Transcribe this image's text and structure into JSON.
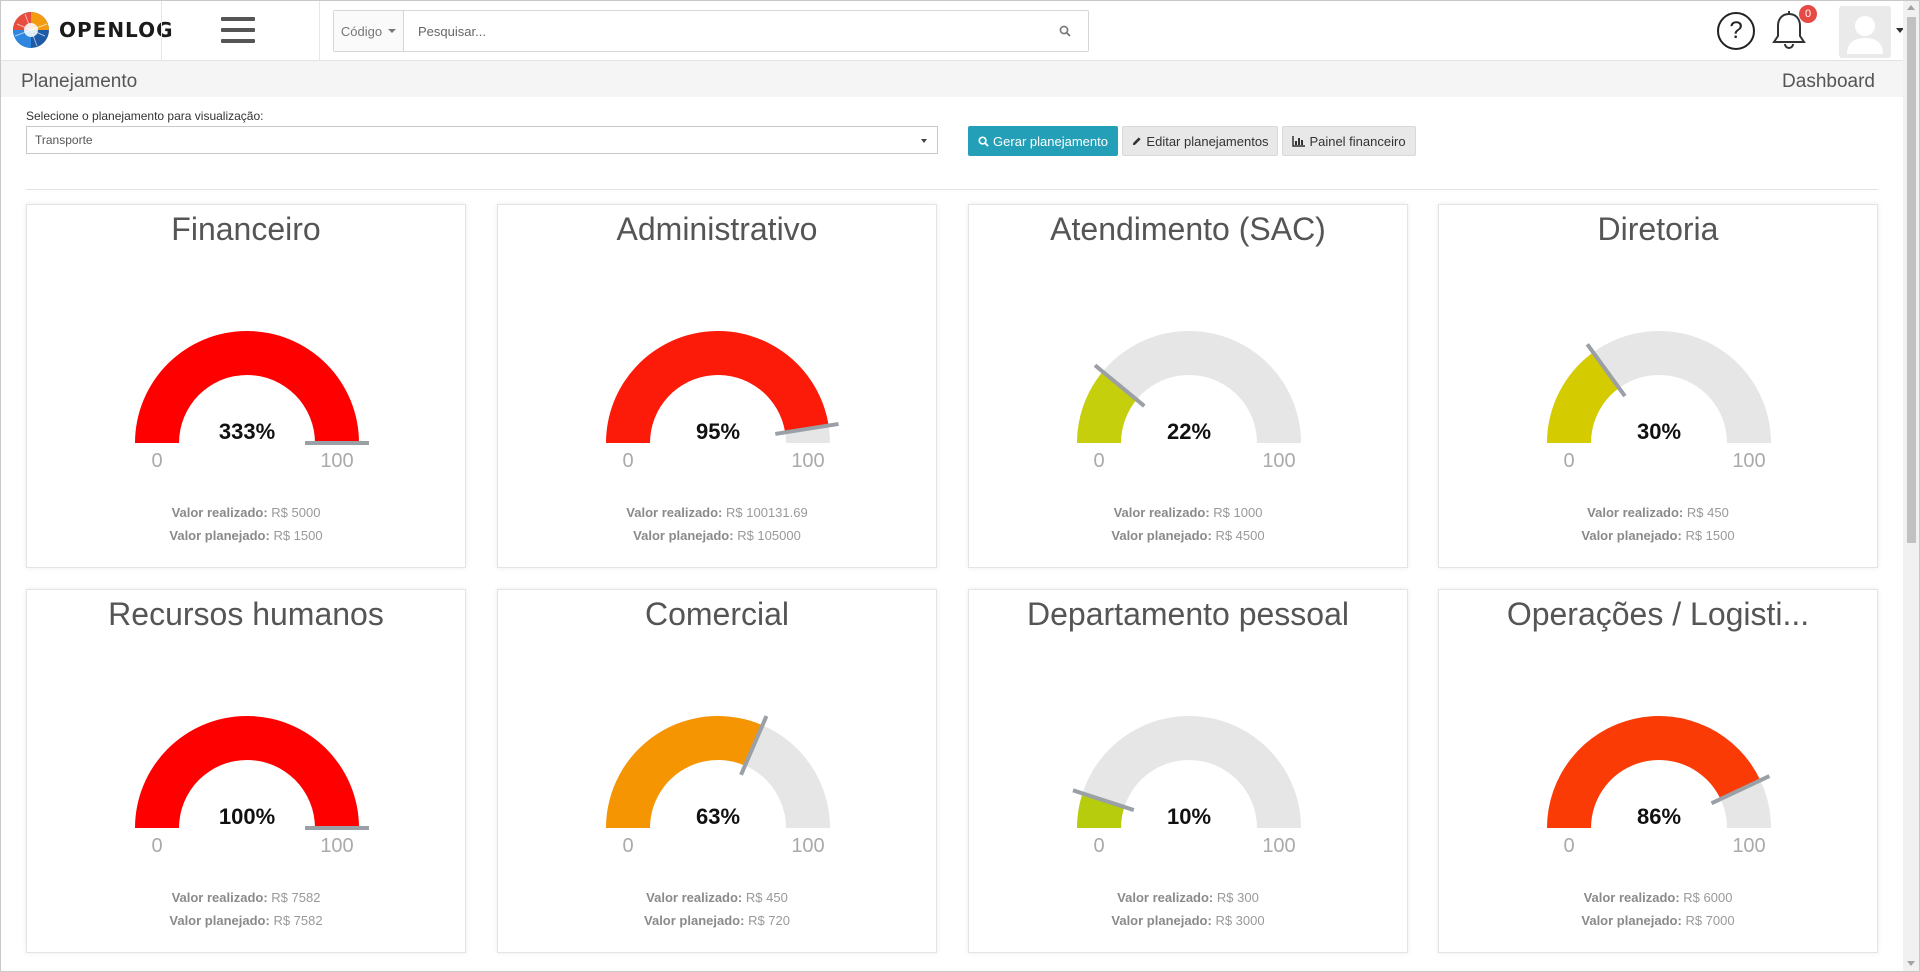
{
  "app": {
    "brand": "OPENLOG",
    "search": {
      "code_label": "Código",
      "placeholder": "Pesquisar..."
    },
    "notifications_count": "0",
    "help_symbol": "?"
  },
  "breadcrumb": {
    "title": "Planejamento",
    "right": "Dashboard"
  },
  "selector": {
    "label": "Selecione o planejamento para visualização:",
    "value": "Transporte"
  },
  "buttons": {
    "generate": "Gerar planejamento",
    "edit": "Editar planejamentos",
    "panel": "Painel financeiro"
  },
  "labels": {
    "realized": "Valor realizado:",
    "planned": "Valor planejado:"
  },
  "gauge_axis": {
    "min": "0",
    "max": "100"
  },
  "cards": [
    {
      "title": "Financeiro",
      "percent_label": "333%",
      "percent": 333,
      "color": "#ff0000",
      "realized": "R$ 5000",
      "planned": "R$ 1500"
    },
    {
      "title": "Administrativo",
      "percent_label": "95%",
      "percent": 95,
      "color": "#fb1b08",
      "realized": "R$ 100131.69",
      "planned": "R$ 105000"
    },
    {
      "title": "Atendimento (SAC)",
      "percent_label": "22%",
      "percent": 22,
      "color": "#c6cf0c",
      "realized": "R$ 1000",
      "planned": "R$ 4500"
    },
    {
      "title": "Diretoria",
      "percent_label": "30%",
      "percent": 30,
      "color": "#d4cb00",
      "realized": "R$ 450",
      "planned": "R$ 1500"
    },
    {
      "title": "Recursos humanos",
      "percent_label": "100%",
      "percent": 100,
      "color": "#ff0000",
      "realized": "R$ 7582",
      "planned": "R$ 7582"
    },
    {
      "title": "Comercial",
      "percent_label": "63%",
      "percent": 63,
      "color": "#f59502",
      "realized": "R$ 450",
      "planned": "R$ 720"
    },
    {
      "title": "Departamento pessoal",
      "percent_label": "10%",
      "percent": 10,
      "color": "#b6cc0c",
      "realized": "R$ 300",
      "planned": "R$ 3000"
    },
    {
      "title": "Operações / Logisti...",
      "percent_label": "86%",
      "percent": 86,
      "color": "#fb3b06",
      "realized": "R$ 6000",
      "planned": "R$ 7000"
    }
  ]
}
